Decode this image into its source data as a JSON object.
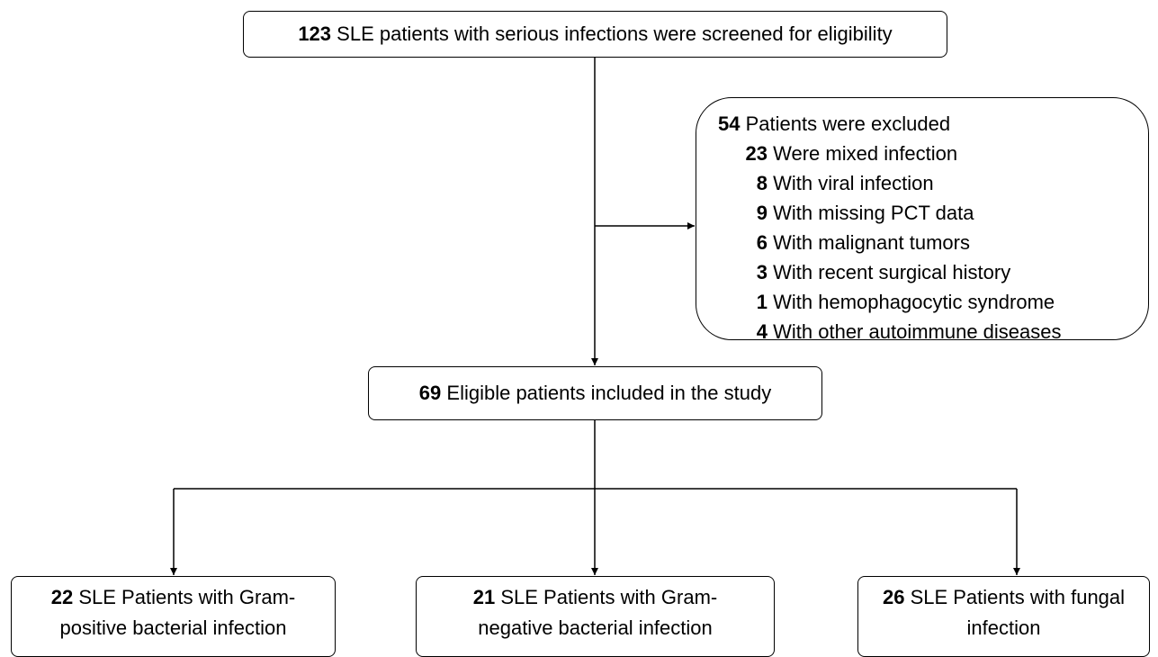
{
  "screened": {
    "count": 123,
    "label": "SLE patients with serious infections were screened for eligibility"
  },
  "excluded": {
    "count": 54,
    "label": "Patients were excluded",
    "items": [
      {
        "count": 23,
        "label": "Were mixed infection"
      },
      {
        "count": 8,
        "label": "With viral infection"
      },
      {
        "count": 9,
        "label": "With missing PCT data"
      },
      {
        "count": 6,
        "label": "With malignant tumors"
      },
      {
        "count": 3,
        "label": "With recent surgical history"
      },
      {
        "count": 1,
        "label": "With hemophagocytic syndrome"
      },
      {
        "count": 4,
        "label": "With other autoimmune diseases"
      }
    ]
  },
  "included": {
    "count": 69,
    "label": "Eligible patients included in the study"
  },
  "groups": [
    {
      "count": 22,
      "label": "SLE Patients with Gram-positive bacterial infection"
    },
    {
      "count": 21,
      "label": "SLE Patients with Gram-negative bacterial infection"
    },
    {
      "count": 26,
      "label": "SLE Patients with fungal infection"
    }
  ]
}
